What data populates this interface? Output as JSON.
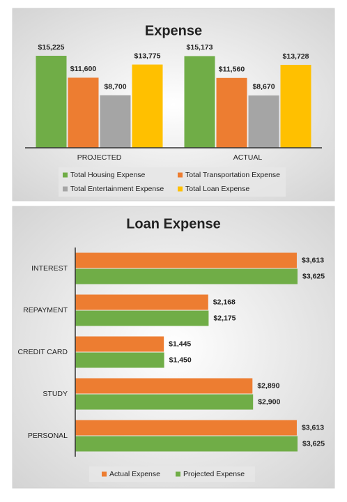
{
  "chart_data": [
    {
      "type": "bar",
      "title": "Expense",
      "categories": [
        "PROJECTED",
        "ACTUAL"
      ],
      "series": [
        {
          "name": "Total Housing Expense",
          "color": "#70ad47",
          "values": [
            15225,
            15173
          ],
          "value_labels": [
            "$15,225",
            "$15,173"
          ]
        },
        {
          "name": "Total Transportation Expense",
          "color": "#ed7d31",
          "values": [
            11600,
            11560
          ],
          "value_labels": [
            "$11,600",
            "$11,560"
          ]
        },
        {
          "name": "Total Entertainment Expense",
          "color": "#a5a5a5",
          "values": [
            8700,
            8670
          ],
          "value_labels": [
            "$8,700",
            "$8,670"
          ]
        },
        {
          "name": "Total Loan Expense",
          "color": "#ffc000",
          "values": [
            13775,
            13728
          ],
          "value_labels": [
            "$13,775",
            "$13,728"
          ]
        }
      ],
      "legend": "bottom"
    },
    {
      "type": "bar",
      "orientation": "horizontal",
      "title": "Loan Expense",
      "categories": [
        "INTEREST",
        "REPAYMENT",
        "CREDIT CARD",
        "STUDY",
        "PERSONAL"
      ],
      "series": [
        {
          "name": "Actual Expense",
          "color": "#ed7d31",
          "values": [
            3613,
            2168,
            1445,
            2890,
            3613
          ],
          "value_labels": [
            "$3,613",
            "$2,168",
            "$1,445",
            "$2,890",
            "$3,613"
          ]
        },
        {
          "name": "Projected Expense",
          "color": "#70ad47",
          "values": [
            3625,
            2175,
            1450,
            2900,
            3625
          ],
          "value_labels": [
            "$3,625",
            "$2,175",
            "$1,450",
            "$2,900",
            "$3,625"
          ]
        }
      ],
      "legend": "bottom"
    }
  ]
}
